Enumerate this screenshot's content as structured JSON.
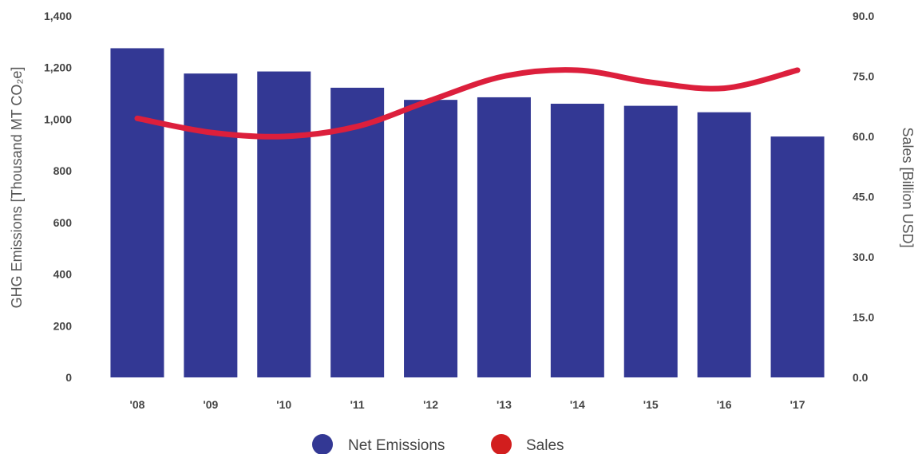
{
  "chart_data": {
    "type": "bar",
    "categories": [
      "'08",
      "'09",
      "'10",
      "'11",
      "'12",
      "'13",
      "'14",
      "'15",
      "'16",
      "'17"
    ],
    "series": [
      {
        "name": "Net Emissions",
        "type": "bar",
        "axis": "left",
        "color": "#333894",
        "values": [
          1275,
          1177,
          1185,
          1122,
          1075,
          1085,
          1060,
          1052,
          1027,
          933
        ]
      },
      {
        "name": "Sales",
        "type": "line",
        "axis": "right",
        "color": "#dc1f3c",
        "values": [
          64.5,
          61.0,
          60.0,
          62.5,
          69.0,
          75.0,
          76.5,
          73.5,
          72.0,
          76.5
        ]
      }
    ],
    "ylabel": "GHG Emissions [Thousand MT CO₂e]",
    "ylim": [
      0,
      1400
    ],
    "yticks": [
      "0",
      "200",
      "400",
      "600",
      "800",
      "1,000",
      "1,200",
      "1,400"
    ],
    "y2label": "Sales [Billion USD]",
    "y2lim": [
      0,
      90
    ],
    "y2ticks": [
      "0.0",
      "15.0",
      "30.0",
      "45.0",
      "60.0",
      "75.0",
      "90.0"
    ],
    "grid": false,
    "legend_position": "bottom-center"
  }
}
